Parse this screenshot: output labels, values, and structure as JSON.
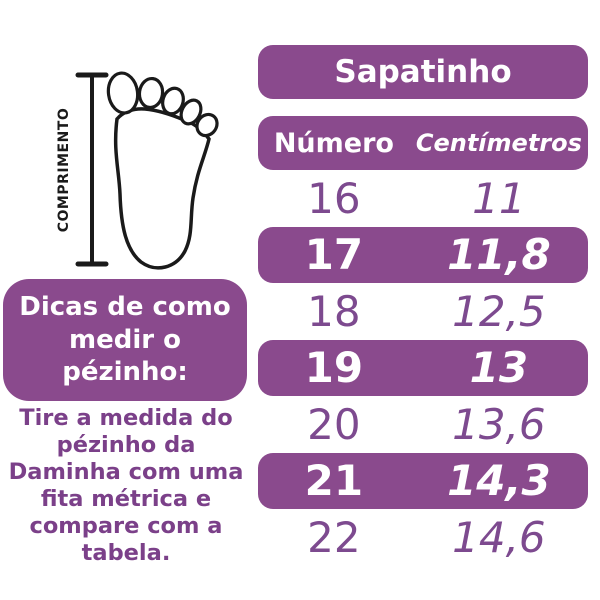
{
  "colors": {
    "purple_bg": "#8a4a8d",
    "purple_text": "#7d4a8f",
    "tip_text": "#7b4089",
    "outline": "#1a1a1a",
    "white": "#ffffff"
  },
  "figure": {
    "measure_label": "COMPRIMENTO"
  },
  "tips": {
    "heading": "Dicas de como medir o pézinho:",
    "body": "Tire a medida do pézinho da Daminha com uma fita métrica e compare com a tabela."
  },
  "table": {
    "title": "Sapatinho",
    "columns": [
      "Número",
      "Centímetros"
    ],
    "rows": [
      {
        "numero": "16",
        "cm": "11",
        "highlight": false
      },
      {
        "numero": "17",
        "cm": "11,8",
        "highlight": true
      },
      {
        "numero": "18",
        "cm": "12,5",
        "highlight": false
      },
      {
        "numero": "19",
        "cm": "13",
        "highlight": true
      },
      {
        "numero": "20",
        "cm": "13,6",
        "highlight": false
      },
      {
        "numero": "21",
        "cm": "14,3",
        "highlight": true
      },
      {
        "numero": "22",
        "cm": "14,6",
        "highlight": false
      }
    ]
  },
  "chart_data": {
    "type": "table",
    "title": "Sapatinho",
    "columns": [
      "Número",
      "Centímetros"
    ],
    "rows": [
      [
        "16",
        "11"
      ],
      [
        "17",
        "11,8"
      ],
      [
        "18",
        "12,5"
      ],
      [
        "19",
        "13"
      ],
      [
        "20",
        "13,6"
      ],
      [
        "21",
        "14,3"
      ],
      [
        "22",
        "14,6"
      ]
    ],
    "highlighted_rows": [
      "17",
      "19",
      "21"
    ],
    "notes": "Shoe size (Número) vs foot length in centimeters; alternating rows highlighted purple"
  }
}
